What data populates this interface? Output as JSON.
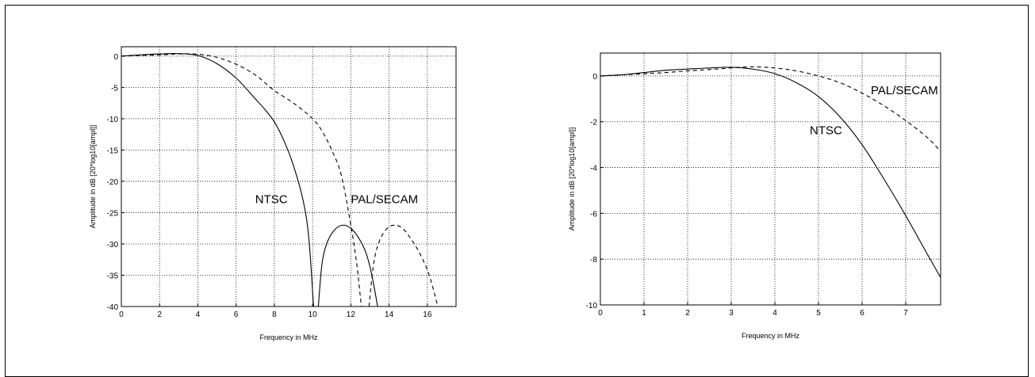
{
  "chart_data": [
    {
      "type": "line",
      "title": "",
      "xlabel": "Frequency in MHz",
      "ylabel": "Amplitude in dB [20*log10[ampl]]",
      "xlim": [
        0,
        17.5
      ],
      "ylim": [
        -40,
        1.5
      ],
      "xticks": [
        0,
        2,
        4,
        6,
        8,
        10,
        12,
        14,
        16
      ],
      "yticks": [
        0,
        -5,
        -10,
        -15,
        -20,
        -25,
        -30,
        -35,
        -40
      ],
      "grid": true,
      "annotations": [
        {
          "text": "NTSC",
          "x": 7,
          "y": -23.5
        },
        {
          "text": "PAL/SECAM",
          "x": 12,
          "y": -23.5
        }
      ],
      "series": [
        {
          "name": "NTSC",
          "style": "solid",
          "x": [
            0,
            1,
            2,
            3,
            4,
            5,
            6,
            7,
            7.5,
            8,
            8.5,
            9,
            9.5,
            9.8,
            10.05
          ],
          "y": [
            0,
            0.2,
            0.35,
            0.4,
            0.1,
            -1.2,
            -3.5,
            -6.8,
            -8.5,
            -10.5,
            -13.5,
            -17.5,
            -23,
            -29,
            -40
          ]
        },
        {
          "name": "NTSC",
          "style": "solid",
          "x": [
            10.3,
            10.5,
            10.8,
            11.2,
            11.6,
            12,
            12.4,
            12.8,
            13.1,
            13.4
          ],
          "y": [
            -40,
            -33,
            -29.5,
            -27.6,
            -27,
            -27.5,
            -29,
            -31.5,
            -35,
            -40
          ]
        },
        {
          "name": "PAL/SECAM",
          "style": "dashed",
          "x": [
            0,
            2,
            3,
            4,
            5,
            6,
            7,
            8,
            9,
            10,
            10.5,
            11,
            11.5,
            12,
            12.3,
            12.55
          ],
          "y": [
            0,
            0.2,
            0.35,
            0.3,
            -0.2,
            -1.3,
            -3,
            -5.5,
            -7.5,
            -10,
            -12,
            -15,
            -19,
            -27,
            -33,
            -40
          ]
        },
        {
          "name": "PAL/SECAM",
          "style": "dashed",
          "x": [
            12.95,
            13.2,
            13.5,
            13.9,
            14.3,
            14.7,
            15.1,
            15.6,
            16.1,
            16.55
          ],
          "y": [
            -40,
            -33,
            -29.5,
            -27.5,
            -27,
            -27.5,
            -29,
            -31.5,
            -35,
            -40
          ]
        }
      ]
    },
    {
      "type": "line",
      "title": "",
      "xlabel": "Frequency in MHz",
      "ylabel": "Amplitude in dB [20*log10[ampl]]",
      "xlim": [
        0,
        7.8
      ],
      "ylim": [
        -10,
        1
      ],
      "xticks": [
        0,
        1,
        2,
        3,
        4,
        5,
        6,
        7
      ],
      "yticks": [
        0,
        -2,
        -4,
        -6,
        -8,
        -10
      ],
      "grid": true,
      "annotations": [
        {
          "text": "NTSC",
          "x": 4.8,
          "y": -2.55
        },
        {
          "text": "PAL/SECAM",
          "x": 6.2,
          "y": -0.8
        }
      ],
      "series": [
        {
          "name": "NTSC",
          "style": "solid",
          "x": [
            0,
            0.5,
            1,
            1.5,
            2,
            2.5,
            3,
            3.5,
            4,
            4.5,
            5,
            5.5,
            6,
            6.5,
            7,
            7.5,
            7.8
          ],
          "y": [
            0,
            0.05,
            0.15,
            0.25,
            0.3,
            0.35,
            0.38,
            0.3,
            0.1,
            -0.3,
            -0.9,
            -1.8,
            -3,
            -4.5,
            -6.1,
            -7.8,
            -8.8
          ]
        },
        {
          "name": "PAL/SECAM",
          "style": "dashed",
          "x": [
            0,
            1,
            1.5,
            2,
            2.5,
            3,
            3.5,
            4,
            4.5,
            5,
            5.5,
            6,
            6.5,
            7,
            7.5,
            7.8
          ],
          "y": [
            0,
            0.1,
            0.15,
            0.22,
            0.28,
            0.35,
            0.4,
            0.35,
            0.22,
            0,
            -0.3,
            -0.75,
            -1.3,
            -1.95,
            -2.7,
            -3.3
          ]
        }
      ]
    }
  ]
}
